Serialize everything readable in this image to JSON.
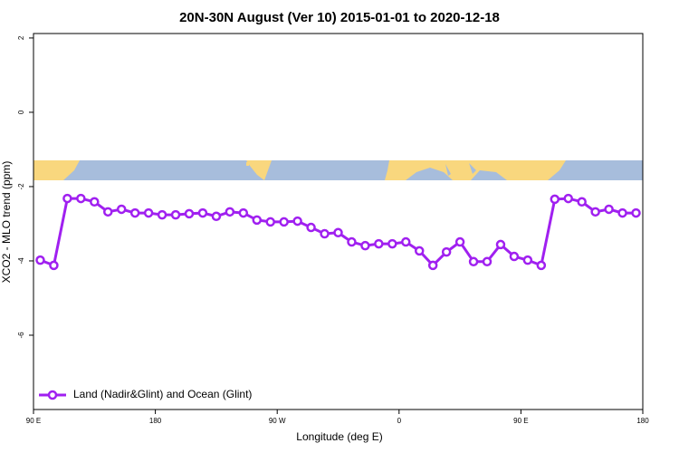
{
  "chart_data": {
    "type": "line",
    "title": "20N-30N August (Ver 10)   2015-01-01 to 2020-12-18",
    "x_label": "Longitude (deg E)",
    "y_label": "XCO2 - MLO trend (ppm)",
    "x": [
      95,
      105,
      115,
      125,
      135,
      145,
      155,
      165,
      175,
      185,
      195,
      205,
      215,
      225,
      235,
      245,
      255,
      265,
      275,
      285,
      295,
      305,
      315,
      325,
      335,
      345,
      355,
      365,
      375,
      385,
      395,
      405,
      415,
      425,
      435,
      445,
      455,
      465,
      475,
      485,
      495,
      505,
      515,
      525,
      535
    ],
    "series": [
      {
        "name": "Land (Nadir&Glint) and Ocean (Glint)",
        "color": "#a020f0",
        "values": [
          -3.98,
          -4.12,
          -2.32,
          -2.32,
          -2.41,
          -2.68,
          -2.61,
          -2.71,
          -2.71,
          -2.76,
          -2.76,
          -2.73,
          -2.71,
          -2.8,
          -2.68,
          -2.71,
          -2.9,
          -2.95,
          -2.95,
          -2.93,
          -3.1,
          -3.27,
          -3.24,
          -3.49,
          -3.59,
          -3.54,
          -3.54,
          -3.49,
          -3.73,
          -4.12,
          -3.76,
          -3.49,
          -4.02,
          -4.02,
          -3.56,
          -3.88,
          -3.98,
          -4.12,
          -2.34,
          -2.32,
          -2.41,
          -2.68,
          -2.61,
          -2.71,
          -2.71
        ]
      }
    ],
    "xlim": [
      90,
      540
    ],
    "xticks": [
      {
        "value": 90,
        "label": "90 E"
      },
      180,
      {
        "value": 270,
        "label": "90 W"
      },
      {
        "value": 360,
        "label": "0"
      },
      {
        "value": 450,
        "label": "90 E"
      },
      {
        "value": 540,
        "label": "180"
      }
    ],
    "ylim": [
      -8,
      2.12
    ],
    "yticks": [
      2,
      0,
      -2,
      -4,
      -6
    ],
    "legend": "bottom-left"
  }
}
